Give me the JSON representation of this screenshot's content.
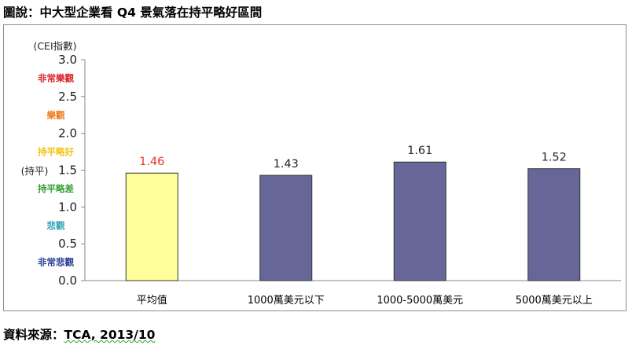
{
  "caption": "圖說：中大型企業看 Q4 景氣落在持平略好區間",
  "source": {
    "prefix": "資料來源：",
    "text": "TCA, 2013/10"
  },
  "chart_data": {
    "type": "bar",
    "title": "",
    "ylabel": "(CEI指數)",
    "ylim": [
      0,
      3.0
    ],
    "yticks": [
      "0.0",
      "0.5",
      "1.0",
      "1.5",
      "2.0",
      "2.5",
      "3.0"
    ],
    "categories": [
      "平均值",
      "1000萬美元以下",
      "1000-5000萬美元",
      "5000萬美元以上"
    ],
    "values": [
      1.46,
      1.43,
      1.61,
      1.52
    ],
    "value_labels": [
      "1.46",
      "1.43",
      "1.61",
      "1.52"
    ],
    "bar_colors": [
      "#ffff99",
      "#666699",
      "#666699",
      "#666699"
    ],
    "bar_stroke": "#333333",
    "value_label_colors": [
      "#e8312a",
      "#222222",
      "#222222",
      "#222222"
    ],
    "grid": false,
    "baseline_label": "(持平)",
    "band_labels": [
      {
        "text": "非常樂觀",
        "value": 2.75,
        "color": "#d9262c"
      },
      {
        "text": "樂觀",
        "value": 2.25,
        "color": "#f07c1c"
      },
      {
        "text": "持平略好",
        "value": 1.75,
        "color": "#f2c417"
      },
      {
        "text": "持平略差",
        "value": 1.25,
        "color": "#35a236"
      },
      {
        "text": "悲觀",
        "value": 0.75,
        "color": "#33a6b8"
      },
      {
        "text": "非常悲觀",
        "value": 0.25,
        "color": "#2a3f96"
      }
    ]
  }
}
